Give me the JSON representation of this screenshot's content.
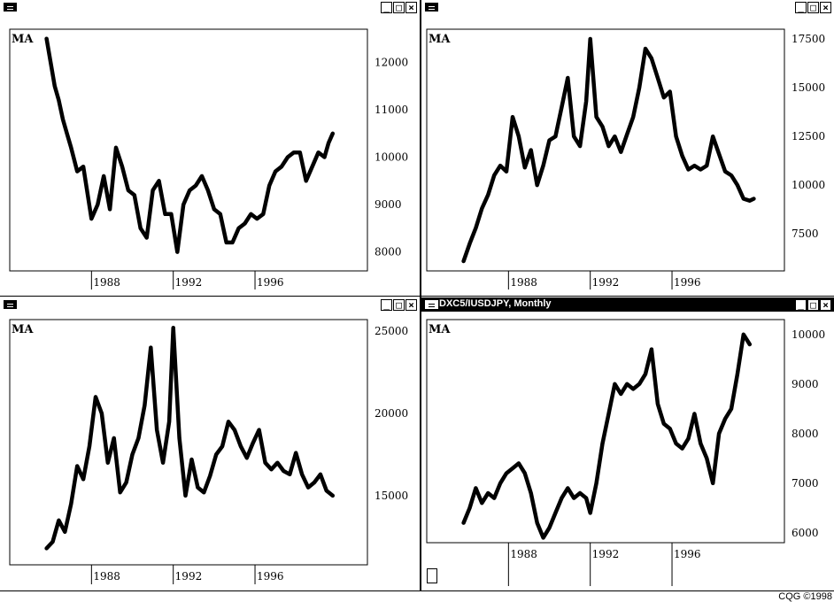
{
  "windows": [
    {
      "title": "",
      "active": false,
      "buttons": [
        "_",
        "□",
        "×"
      ]
    },
    {
      "title": "",
      "active": false,
      "buttons": [
        "_",
        "□",
        "×"
      ]
    },
    {
      "title": "",
      "active": false,
      "buttons": [
        "_",
        "□",
        "×"
      ]
    },
    {
      "title": "DXC5/IUSDJPY, Monthly",
      "active": true,
      "buttons": [
        "_",
        "□",
        "×"
      ]
    }
  ],
  "footer": "CQG ©1998",
  "chart_data": [
    {
      "type": "line",
      "title": "",
      "label": "MA",
      "xlim": [
        1984.0,
        2001.5
      ],
      "ylim": [
        7600,
        12700
      ],
      "yticks": [
        8000,
        9000,
        10000,
        11000,
        12000
      ],
      "xticks": [
        1988,
        1992,
        1996
      ],
      "series": [
        {
          "x": [
            1985.8,
            1986.0,
            1986.2,
            1986.4,
            1986.6,
            1986.8,
            1987.0,
            1987.3,
            1987.6,
            1988.0,
            1988.3,
            1988.6,
            1988.9,
            1989.2,
            1989.5,
            1989.8,
            1990.1,
            1990.4,
            1990.7,
            1991.0,
            1991.3,
            1991.6,
            1991.9,
            1992.2,
            1992.5,
            1992.8,
            1993.1,
            1993.4,
            1993.7,
            1994.0,
            1994.3,
            1994.6,
            1994.9,
            1995.2,
            1995.5,
            1995.8,
            1996.1,
            1996.4,
            1996.7,
            1997.0,
            1997.3,
            1997.6,
            1997.9,
            1998.2,
            1998.5,
            1998.8,
            1999.1,
            1999.4,
            1999.6,
            1999.8
          ],
          "y": [
            12500,
            12000,
            11500,
            11200,
            10800,
            10500,
            10200,
            9700,
            9800,
            8700,
            9000,
            9600,
            8900,
            10200,
            9800,
            9300,
            9200,
            8500,
            8300,
            9300,
            9500,
            8800,
            8800,
            8000,
            9000,
            9300,
            9400,
            9600,
            9300,
            8900,
            8800,
            8200,
            8200,
            8500,
            8600,
            8800,
            8700,
            8800,
            9400,
            9700,
            9800,
            10000,
            10100,
            10100,
            9500,
            9800,
            10100,
            10000,
            10300,
            10500
          ]
        }
      ]
    },
    {
      "type": "line",
      "title": "",
      "label": "MA",
      "xlim": [
        1984.0,
        2001.5
      ],
      "ylim": [
        5600,
        18000
      ],
      "yticks": [
        7500,
        10000,
        12500,
        15000,
        17500
      ],
      "xticks": [
        1988,
        1992,
        1996
      ],
      "series": [
        {
          "x": [
            1985.8,
            1986.1,
            1986.4,
            1986.7,
            1987.0,
            1987.3,
            1987.6,
            1987.9,
            1988.2,
            1988.5,
            1988.8,
            1989.1,
            1989.4,
            1989.7,
            1990.0,
            1990.3,
            1990.6,
            1990.9,
            1991.2,
            1991.5,
            1991.8,
            1992.0,
            1992.3,
            1992.6,
            1992.9,
            1993.2,
            1993.5,
            1993.8,
            1994.1,
            1994.4,
            1994.7,
            1995.0,
            1995.3,
            1995.6,
            1995.9,
            1996.2,
            1996.5,
            1996.8,
            1997.1,
            1997.4,
            1997.7,
            1998.0,
            1998.3,
            1998.6,
            1998.9,
            1999.2,
            1999.5,
            1999.8,
            2000.0
          ],
          "y": [
            6100,
            7000,
            7800,
            8800,
            9500,
            10500,
            11000,
            10700,
            13500,
            12500,
            10900,
            11800,
            10000,
            11000,
            12300,
            12500,
            14000,
            15500,
            12500,
            12000,
            14300,
            17500,
            13500,
            13000,
            12000,
            12500,
            11700,
            12600,
            13500,
            15000,
            17000,
            16500,
            15500,
            14500,
            14800,
            12500,
            11500,
            10800,
            11000,
            10800,
            11000,
            12500,
            11600,
            10700,
            10500,
            10000,
            9300,
            9200,
            9300
          ]
        }
      ]
    },
    {
      "type": "line",
      "title": "",
      "label": "MA",
      "xlim": [
        1984.0,
        2001.5
      ],
      "ylim": [
        10800,
        25700
      ],
      "yticks": [
        15000,
        20000,
        25000
      ],
      "xticks": [
        1988,
        1992,
        1996
      ],
      "series": [
        {
          "x": [
            1985.8,
            1986.1,
            1986.4,
            1986.7,
            1987.0,
            1987.3,
            1987.6,
            1987.9,
            1988.2,
            1988.5,
            1988.8,
            1989.1,
            1989.4,
            1989.7,
            1990.0,
            1990.3,
            1990.6,
            1990.9,
            1991.2,
            1991.5,
            1991.8,
            1992.0,
            1992.3,
            1992.6,
            1992.9,
            1993.2,
            1993.5,
            1993.8,
            1994.1,
            1994.4,
            1994.7,
            1995.0,
            1995.3,
            1995.6,
            1995.9,
            1996.2,
            1996.5,
            1996.8,
            1997.1,
            1997.4,
            1997.7,
            1998.0,
            1998.3,
            1998.6,
            1998.9,
            1999.2,
            1999.5,
            1999.8
          ],
          "y": [
            11800,
            12200,
            13500,
            12800,
            14500,
            16800,
            16000,
            18000,
            21000,
            20000,
            17000,
            18500,
            15200,
            15800,
            17500,
            18500,
            20500,
            24000,
            19000,
            17000,
            19500,
            25200,
            18500,
            15000,
            17200,
            15500,
            15200,
            16200,
            17500,
            18000,
            19500,
            19000,
            18000,
            17300,
            18200,
            19000,
            17000,
            16600,
            17000,
            16500,
            16300,
            17600,
            16300,
            15500,
            15800,
            16300,
            15300,
            15000
          ]
        }
      ]
    },
    {
      "type": "line",
      "title": "",
      "label": "MA",
      "xlim": [
        1984.0,
        2001.5
      ],
      "ylim": [
        5800,
        10300
      ],
      "yticks": [
        6000,
        7000,
        8000,
        9000,
        10000
      ],
      "xticks": [
        1988,
        1992,
        1996
      ],
      "series": [
        {
          "x": [
            1985.8,
            1986.1,
            1986.4,
            1986.7,
            1987.0,
            1987.3,
            1987.6,
            1987.9,
            1988.2,
            1988.5,
            1988.8,
            1989.1,
            1989.4,
            1989.7,
            1990.0,
            1990.3,
            1990.6,
            1990.9,
            1991.2,
            1991.5,
            1991.8,
            1992.0,
            1992.3,
            1992.6,
            1992.9,
            1993.2,
            1993.5,
            1993.8,
            1994.1,
            1994.4,
            1994.7,
            1995.0,
            1995.3,
            1995.6,
            1995.9,
            1996.2,
            1996.5,
            1996.8,
            1997.1,
            1997.4,
            1997.7,
            1998.0,
            1998.3,
            1998.6,
            1998.9,
            1999.2,
            1999.5,
            1999.8
          ],
          "y": [
            6200,
            6500,
            6900,
            6600,
            6800,
            6700,
            7000,
            7200,
            7300,
            7400,
            7200,
            6800,
            6200,
            5900,
            6100,
            6400,
            6700,
            6900,
            6700,
            6800,
            6700,
            6400,
            7000,
            7800,
            8400,
            9000,
            8800,
            9000,
            8900,
            9000,
            9200,
            9700,
            8600,
            8200,
            8100,
            7800,
            7700,
            7900,
            8400,
            7800,
            7500,
            7000,
            8000,
            8300,
            8500,
            9200,
            10000,
            9800
          ]
        }
      ]
    }
  ]
}
